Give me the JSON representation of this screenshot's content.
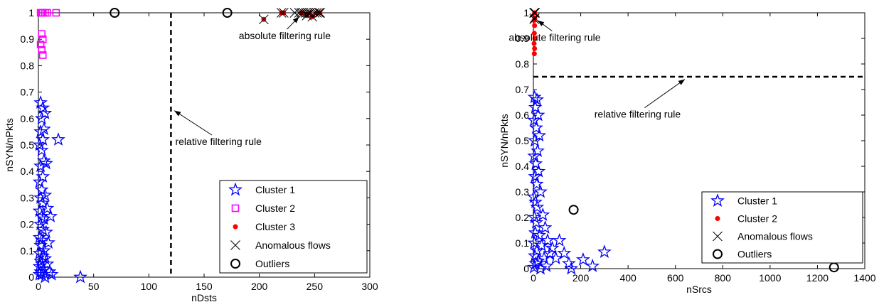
{
  "chart_data": [
    {
      "type": "scatter",
      "title": "",
      "xlabel": "nDsts",
      "ylabel": "nSYN/nPkts",
      "xlim": [
        0,
        300
      ],
      "ylim": [
        0,
        1
      ],
      "xticks": [
        0,
        50,
        100,
        150,
        200,
        250,
        300
      ],
      "yticks": [
        0,
        0.1,
        0.2,
        0.3,
        0.4,
        0.5,
        0.6,
        0.7,
        0.8,
        0.9,
        1
      ],
      "grid": false,
      "legend_position": "bottom-right",
      "legend": [
        "Cluster 1",
        "Cluster 2",
        "Cluster 3",
        "Anomalous flows",
        "Outliers"
      ],
      "series": [
        {
          "name": "Cluster 1",
          "marker": "star",
          "color": "#0000ff",
          "points": [
            [
              2,
              0.66
            ],
            [
              4,
              0.64
            ],
            [
              6,
              0.62
            ],
            [
              3,
              0.6
            ],
            [
              5,
              0.56
            ],
            [
              2,
              0.55
            ],
            [
              4,
              0.52
            ],
            [
              1,
              0.5
            ],
            [
              3,
              0.48
            ],
            [
              5,
              0.44
            ],
            [
              7,
              0.43
            ],
            [
              2,
              0.42
            ],
            [
              4,
              0.38
            ],
            [
              1,
              0.36
            ],
            [
              3,
              0.33
            ],
            [
              6,
              0.31
            ],
            [
              2,
              0.3
            ],
            [
              4,
              0.28
            ],
            [
              8,
              0.26
            ],
            [
              1,
              0.25
            ],
            [
              3,
              0.23
            ],
            [
              5,
              0.22
            ],
            [
              11,
              0.23
            ],
            [
              2,
              0.2
            ],
            [
              4,
              0.18
            ],
            [
              7,
              0.17
            ],
            [
              1,
              0.15
            ],
            [
              3,
              0.14
            ],
            [
              9,
              0.13
            ],
            [
              2,
              0.12
            ],
            [
              5,
              0.1
            ],
            [
              1,
              0.09
            ],
            [
              4,
              0.08
            ],
            [
              6,
              0.07
            ],
            [
              2,
              0.06
            ],
            [
              3,
              0.05
            ],
            [
              8,
              0.05
            ],
            [
              1,
              0.04
            ],
            [
              5,
              0.03
            ],
            [
              2,
              0.02
            ],
            [
              10,
              0.02
            ],
            [
              3,
              0.01
            ],
            [
              1,
              0.01
            ],
            [
              6,
              0.0
            ],
            [
              12,
              0.01
            ],
            [
              18,
              0.52
            ],
            [
              38,
              0.0
            ]
          ]
        },
        {
          "name": "Cluster 2",
          "marker": "square",
          "color": "#ff00ff",
          "points": [
            [
              2,
              1.0
            ],
            [
              3,
              1.0
            ],
            [
              4,
              1.0
            ],
            [
              6,
              1.0
            ],
            [
              8,
              1.0
            ],
            [
              16,
              1.0
            ],
            [
              3,
              0.92
            ],
            [
              4,
              0.9
            ],
            [
              2,
              0.88
            ],
            [
              3,
              0.86
            ],
            [
              4,
              0.84
            ]
          ]
        },
        {
          "name": "Cluster 3",
          "marker": "dot",
          "color": "#ff0000",
          "points": [
            [
              204,
              0.975
            ],
            [
              220,
              1.0
            ],
            [
              222,
              1.0
            ],
            [
              238,
              1.0
            ],
            [
              243,
              0.99
            ],
            [
              246,
              1.0
            ],
            [
              248,
              0.985
            ],
            [
              252,
              1.0
            ],
            [
              255,
              1.0
            ]
          ]
        },
        {
          "name": "Anomalous flows",
          "marker": "x",
          "color": "#000000",
          "points": [
            [
              204,
              0.975
            ],
            [
              220,
              1.0
            ],
            [
              222,
              1.0
            ],
            [
              232,
              1.0
            ],
            [
              236,
              1.0
            ],
            [
              238,
              1.0
            ],
            [
              240,
              1.0
            ],
            [
              242,
              1.0
            ],
            [
              243,
              0.99
            ],
            [
              244,
              1.0
            ],
            [
              246,
              1.0
            ],
            [
              248,
              0.985
            ],
            [
              250,
              1.0
            ],
            [
              252,
              1.0
            ],
            [
              254,
              1.0
            ],
            [
              255,
              1.0
            ]
          ]
        },
        {
          "name": "Outliers",
          "marker": "circle",
          "color": "#000000",
          "points": [
            [
              69,
              1.0
            ],
            [
              171,
              1.0
            ]
          ]
        }
      ],
      "reference_lines": [
        {
          "orientation": "vertical",
          "value": 120,
          "style": "dashed"
        }
      ],
      "annotations": [
        {
          "text": "absolute filtering rule",
          "position": [
            223,
            0.9
          ],
          "arrow_to": [
            236,
            0.985
          ]
        },
        {
          "text": "relative filtering rule",
          "position": [
            163,
            0.5
          ],
          "arrow_to": [
            123,
            0.63
          ]
        }
      ]
    },
    {
      "type": "scatter",
      "title": "",
      "xlabel": "nSrcs",
      "ylabel": "nSYN/nPkts",
      "xlim": [
        0,
        1400
      ],
      "ylim": [
        0,
        1
      ],
      "xticks": [
        0,
        200,
        400,
        600,
        800,
        1000,
        1200,
        1400
      ],
      "yticks": [
        0,
        0.1,
        0.2,
        0.3,
        0.4,
        0.5,
        0.6,
        0.7,
        0.8,
        0.9,
        1
      ],
      "grid": false,
      "legend_position": "bottom-right",
      "legend": [
        "Cluster 1",
        "Cluster 2",
        "Anomalous flows",
        "Outliers"
      ],
      "series": [
        {
          "name": "Cluster 1",
          "marker": "star",
          "color": "#0000ff",
          "points": [
            [
              5,
              0.67
            ],
            [
              15,
              0.66
            ],
            [
              8,
              0.63
            ],
            [
              20,
              0.6
            ],
            [
              3,
              0.58
            ],
            [
              12,
              0.55
            ],
            [
              25,
              0.52
            ],
            [
              6,
              0.5
            ],
            [
              18,
              0.46
            ],
            [
              4,
              0.44
            ],
            [
              10,
              0.41
            ],
            [
              22,
              0.38
            ],
            [
              7,
              0.36
            ],
            [
              14,
              0.33
            ],
            [
              30,
              0.3
            ],
            [
              2,
              0.28
            ],
            [
              9,
              0.26
            ],
            [
              16,
              0.24
            ],
            [
              40,
              0.21
            ],
            [
              5,
              0.2
            ],
            [
              12,
              0.18
            ],
            [
              50,
              0.16
            ],
            [
              8,
              0.14
            ],
            [
              25,
              0.13
            ],
            [
              60,
              0.11
            ],
            [
              4,
              0.1
            ],
            [
              35,
              0.09
            ],
            [
              80,
              0.08
            ],
            [
              110,
              0.11
            ],
            [
              15,
              0.07
            ],
            [
              70,
              0.06
            ],
            [
              130,
              0.06
            ],
            [
              300,
              0.065
            ],
            [
              6,
              0.05
            ],
            [
              45,
              0.04
            ],
            [
              95,
              0.04
            ],
            [
              210,
              0.035
            ],
            [
              20,
              0.03
            ],
            [
              150,
              0.02
            ],
            [
              10,
              0.02
            ],
            [
              55,
              0.01
            ],
            [
              250,
              0.01
            ],
            [
              3,
              0.005
            ],
            [
              30,
              0.0
            ],
            [
              160,
              0.0
            ]
          ]
        },
        {
          "name": "Cluster 2",
          "marker": "dot",
          "color": "#ff0000",
          "points": [
            [
              5,
              1.0
            ],
            [
              6,
              0.98
            ],
            [
              3,
              0.97
            ],
            [
              5,
              0.95
            ],
            [
              4,
              0.92
            ],
            [
              6,
              0.9
            ],
            [
              3,
              0.88
            ],
            [
              5,
              0.86
            ],
            [
              4,
              0.84
            ]
          ]
        },
        {
          "name": "Anomalous flows",
          "marker": "x",
          "color": "#000000",
          "points": [
            [
              3,
              1.0
            ],
            [
              5,
              1.0
            ],
            [
              7,
              1.0
            ],
            [
              6,
              0.98
            ],
            [
              4,
              0.975
            ]
          ]
        },
        {
          "name": "Outliers",
          "marker": "circle",
          "color": "#000000",
          "points": [
            [
              170,
              0.23
            ],
            [
              1270,
              0.005
            ]
          ]
        }
      ],
      "reference_lines": [
        {
          "orientation": "horizontal",
          "value": 0.75,
          "style": "dashed"
        }
      ],
      "annotations": [
        {
          "text": "absolute filtering rule",
          "position": [
            90,
            0.89
          ],
          "arrow_to": [
            18,
            0.97
          ]
        },
        {
          "text": "relative filtering rule",
          "position": [
            440,
            0.59
          ],
          "arrow_to": [
            640,
            0.74
          ]
        }
      ]
    }
  ]
}
